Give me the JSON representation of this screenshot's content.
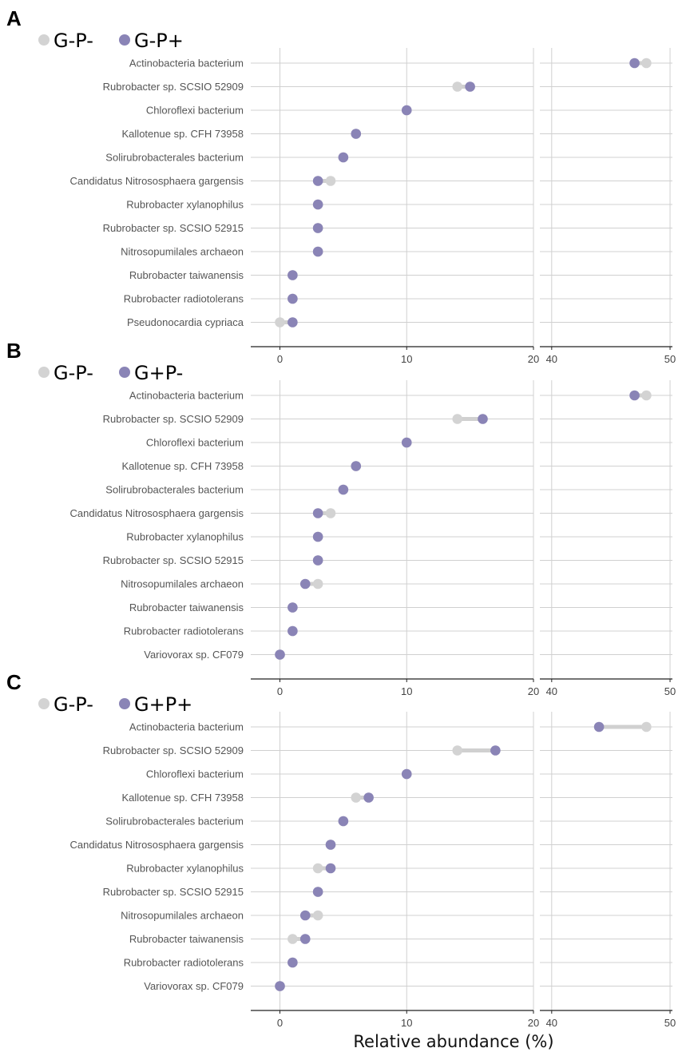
{
  "chart_data": {
    "type": "dumbbell",
    "xlabel": "Relative abundance (%)",
    "axis_left": {
      "range": [
        -2.3,
        20
      ],
      "ticks": [
        0,
        10,
        20
      ]
    },
    "axis_right": {
      "range": [
        39,
        50.2
      ],
      "ticks": [
        40,
        50
      ]
    },
    "colors": {
      "baseline": "#d3d3d3",
      "treatment": "#8a84b6",
      "segment": "#d0d0d0",
      "grid": "#d0d0d0",
      "axis": "#222222"
    },
    "panels": [
      {
        "letter": "A",
        "legend": [
          "G-P-",
          "G-P+"
        ],
        "rows": [
          {
            "label": "Actinobacteria bacterium",
            "a": 48,
            "b": 47
          },
          {
            "label": "Rubrobacter sp. SCSIO 52909",
            "a": 14,
            "b": 15
          },
          {
            "label": "Chloroflexi bacterium",
            "a": 10,
            "b": 10
          },
          {
            "label": "Kallotenue sp. CFH 73958",
            "a": 6,
            "b": 6
          },
          {
            "label": "Solirubrobacterales bacterium",
            "a": 5,
            "b": 5
          },
          {
            "label": "Candidatus Nitrososphaera gargensis",
            "a": 4,
            "b": 3
          },
          {
            "label": "Rubrobacter xylanophilus",
            "a": 3,
            "b": 3
          },
          {
            "label": "Rubrobacter sp. SCSIO 52915",
            "a": 3,
            "b": 3
          },
          {
            "label": "Nitrosopumilales archaeon",
            "a": 3,
            "b": 3
          },
          {
            "label": "Rubrobacter taiwanensis",
            "a": 1,
            "b": 1
          },
          {
            "label": "Rubrobacter radiotolerans",
            "a": 1,
            "b": 1
          },
          {
            "label": "Pseudonocardia cypriaca",
            "a": 0,
            "b": 1
          }
        ]
      },
      {
        "letter": "B",
        "legend": [
          "G-P-",
          "G+P-"
        ],
        "rows": [
          {
            "label": "Actinobacteria bacterium",
            "a": 48,
            "b": 47
          },
          {
            "label": "Rubrobacter sp. SCSIO 52909",
            "a": 14,
            "b": 16
          },
          {
            "label": "Chloroflexi bacterium",
            "a": 10,
            "b": 10
          },
          {
            "label": "Kallotenue sp. CFH 73958",
            "a": 6,
            "b": 6
          },
          {
            "label": "Solirubrobacterales bacterium",
            "a": 5,
            "b": 5
          },
          {
            "label": "Candidatus Nitrososphaera gargensis",
            "a": 4,
            "b": 3
          },
          {
            "label": "Rubrobacter xylanophilus",
            "a": 3,
            "b": 3
          },
          {
            "label": "Rubrobacter sp. SCSIO 52915",
            "a": 3,
            "b": 3
          },
          {
            "label": "Nitrosopumilales archaeon",
            "a": 3,
            "b": 2
          },
          {
            "label": "Rubrobacter taiwanensis",
            "a": 1,
            "b": 1
          },
          {
            "label": "Rubrobacter radiotolerans",
            "a": 1,
            "b": 1
          },
          {
            "label": "Variovorax sp. CF079",
            "a": 0,
            "b": 0
          }
        ]
      },
      {
        "letter": "C",
        "legend": [
          "G-P-",
          "G+P+"
        ],
        "rows": [
          {
            "label": "Actinobacteria bacterium",
            "a": 48,
            "b": 44
          },
          {
            "label": "Rubrobacter sp. SCSIO 52909",
            "a": 14,
            "b": 17
          },
          {
            "label": "Chloroflexi bacterium",
            "a": 10,
            "b": 10
          },
          {
            "label": "Kallotenue sp. CFH 73958",
            "a": 6,
            "b": 7
          },
          {
            "label": "Solirubrobacterales bacterium",
            "a": 5,
            "b": 5
          },
          {
            "label": "Candidatus Nitrososphaera gargensis",
            "a": 4,
            "b": 4
          },
          {
            "label": "Rubrobacter xylanophilus",
            "a": 3,
            "b": 4
          },
          {
            "label": "Rubrobacter sp. SCSIO 52915",
            "a": 3,
            "b": 3
          },
          {
            "label": "Nitrosopumilales archaeon",
            "a": 3,
            "b": 2
          },
          {
            "label": "Rubrobacter taiwanensis",
            "a": 1,
            "b": 2
          },
          {
            "label": "Rubrobacter radiotolerans",
            "a": 1,
            "b": 1
          },
          {
            "label": "Variovorax sp. CF079",
            "a": 0,
            "b": 0
          }
        ]
      }
    ]
  }
}
